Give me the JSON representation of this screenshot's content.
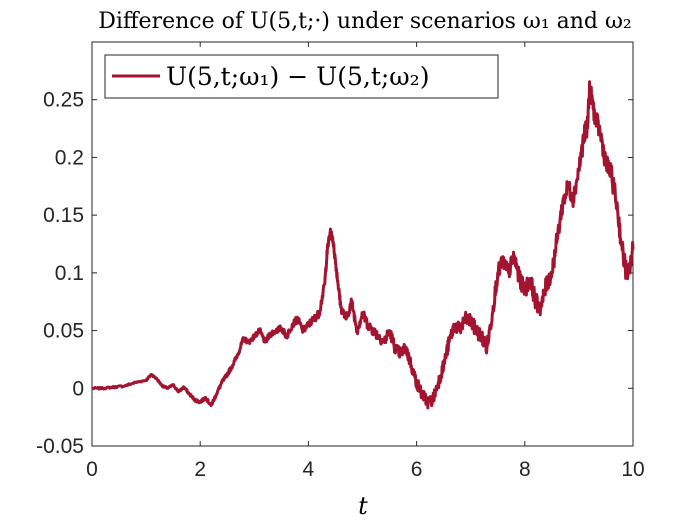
{
  "chart_data": {
    "type": "line",
    "title": "Difference of U(5,t;·) under scenarios ω₁ and ω₂",
    "xlabel": "t",
    "ylabel": "",
    "xlim": [
      0,
      10
    ],
    "ylim": [
      -0.05,
      0.3
    ],
    "xticks": [
      "0",
      "2",
      "4",
      "6",
      "8",
      "10"
    ],
    "yticks": [
      "-0.05",
      "0",
      "0.05",
      "0.1",
      "0.15",
      "0.2",
      "0.25"
    ],
    "grid": false,
    "legend_position": "top-left",
    "series": [
      {
        "name": "U(5,t;ω₁) − U(5,t;ω₂)",
        "color": "#a2142f",
        "x": [
          0,
          0.2,
          0.4,
          0.6,
          0.8,
          1.0,
          1.1,
          1.2,
          1.3,
          1.4,
          1.5,
          1.6,
          1.7,
          1.8,
          1.9,
          2.0,
          2.1,
          2.2,
          2.3,
          2.4,
          2.5,
          2.6,
          2.7,
          2.8,
          2.9,
          3.0,
          3.1,
          3.2,
          3.3,
          3.4,
          3.5,
          3.6,
          3.7,
          3.8,
          3.9,
          4.0,
          4.1,
          4.2,
          4.3,
          4.35,
          4.4,
          4.45,
          4.5,
          4.55,
          4.6,
          4.7,
          4.8,
          4.9,
          5.0,
          5.1,
          5.2,
          5.3,
          5.4,
          5.5,
          5.6,
          5.7,
          5.8,
          5.9,
          6.0,
          6.1,
          6.2,
          6.3,
          6.4,
          6.5,
          6.6,
          6.7,
          6.8,
          6.9,
          7.0,
          7.1,
          7.2,
          7.3,
          7.4,
          7.5,
          7.6,
          7.7,
          7.8,
          7.9,
          8.0,
          8.1,
          8.2,
          8.3,
          8.4,
          8.5,
          8.6,
          8.7,
          8.8,
          8.9,
          9.0,
          9.1,
          9.15,
          9.2,
          9.3,
          9.4,
          9.5,
          9.6,
          9.7,
          9.8,
          9.9,
          10.0
        ],
        "y": [
          0.0,
          0.0,
          0.001,
          0.002,
          0.005,
          0.007,
          0.012,
          0.008,
          0.002,
          0.0,
          0.003,
          -0.003,
          0.001,
          -0.005,
          -0.01,
          -0.012,
          -0.008,
          -0.015,
          -0.005,
          0.005,
          0.012,
          0.02,
          0.03,
          0.043,
          0.04,
          0.045,
          0.05,
          0.04,
          0.047,
          0.05,
          0.052,
          0.045,
          0.055,
          0.06,
          0.05,
          0.055,
          0.06,
          0.065,
          0.09,
          0.12,
          0.135,
          0.13,
          0.11,
          0.09,
          0.07,
          0.06,
          0.075,
          0.05,
          0.065,
          0.055,
          0.05,
          0.045,
          0.04,
          0.05,
          0.035,
          0.03,
          0.035,
          0.02,
          0.005,
          -0.005,
          -0.012,
          -0.01,
          0.005,
          0.02,
          0.04,
          0.055,
          0.05,
          0.06,
          0.058,
          0.05,
          0.045,
          0.035,
          0.065,
          0.1,
          0.11,
          0.1,
          0.115,
          0.095,
          0.085,
          0.095,
          0.075,
          0.07,
          0.09,
          0.1,
          0.13,
          0.16,
          0.175,
          0.165,
          0.19,
          0.22,
          0.225,
          0.26,
          0.235,
          0.22,
          0.195,
          0.185,
          0.16,
          0.12,
          0.095,
          0.12
        ]
      }
    ]
  }
}
